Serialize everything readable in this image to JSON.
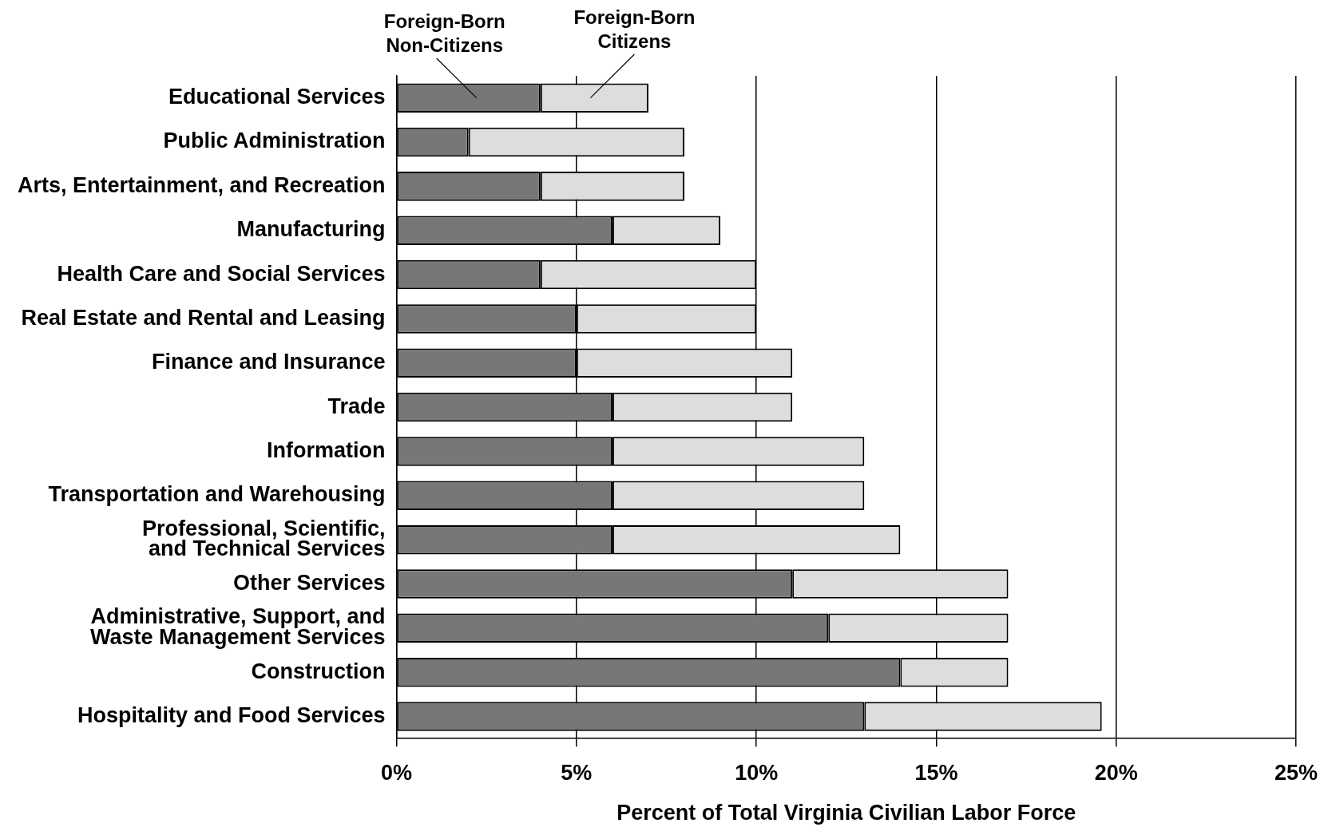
{
  "chart_data": {
    "type": "bar",
    "orientation": "horizontal",
    "stacked": true,
    "xlabel": "Percent of Total Virginia Civilian Labor Force",
    "categories": [
      "Educational Services",
      "Public Administration",
      "Arts, Entertainment, and Recreation",
      "Manufacturing",
      "Health Care and Social Services",
      "Real Estate and Rental and Leasing",
      "Finance and Insurance",
      "Trade",
      "Information",
      "Transportation and Warehousing",
      "Professional, Scientific, and Technical Services",
      "Other Services",
      "Administrative, Support, and Waste Management Services",
      "Construction",
      "Hospitality and Food Services"
    ],
    "series": [
      {
        "name": "Foreign-Born Non-Citizens",
        "color": "#777777",
        "values": [
          4,
          2,
          4,
          6,
          4,
          5,
          5,
          6,
          6,
          6,
          6,
          11,
          12,
          14,
          13
        ]
      },
      {
        "name": "Foreign-Born Citizens",
        "color": "#dddddd",
        "values": [
          3,
          6,
          4,
          3,
          6,
          5,
          6,
          5,
          7,
          7,
          8,
          6,
          5,
          3,
          6.6
        ]
      }
    ],
    "xlim": [
      0,
      25
    ],
    "xticks": [
      {
        "value": 0,
        "label": "0%"
      },
      {
        "value": 5,
        "label": "5%"
      },
      {
        "value": 10,
        "label": "10%"
      },
      {
        "value": 15,
        "label": "15%"
      },
      {
        "value": 20,
        "label": "20%"
      },
      {
        "value": 25,
        "label": "25%"
      }
    ],
    "grid": "x",
    "legend": false
  }
}
